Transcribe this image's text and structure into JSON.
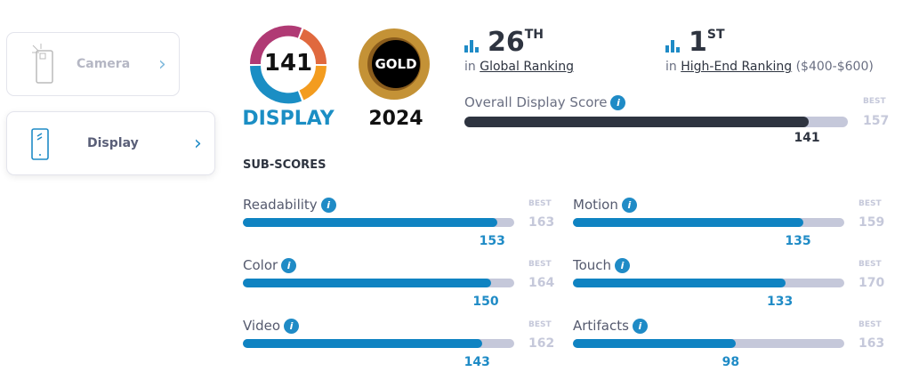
{
  "sidebar": {
    "items": [
      {
        "label": "Camera",
        "icon": "camera-phone-icon"
      },
      {
        "label": "Display",
        "icon": "display-phone-icon",
        "active": true
      }
    ]
  },
  "badge": {
    "score": "141",
    "label": "DISPLAY",
    "award": "GOLD",
    "year": "2024"
  },
  "rankings": [
    {
      "rank": "26",
      "suffix": "TH",
      "prefix": "in",
      "link": "Global Ranking",
      "extra": ""
    },
    {
      "rank": "1",
      "suffix": "ST",
      "prefix": "in",
      "link": "High-End Ranking",
      "extra": "($400-$600)"
    }
  ],
  "overall": {
    "label": "Overall Display Score",
    "best_label": "BEST",
    "best": 157,
    "value": 141
  },
  "subscores_title": "SUB-SCORES",
  "subscores": [
    {
      "label": "Readability",
      "value": 153,
      "best": 163
    },
    {
      "label": "Motion",
      "value": 135,
      "best": 159
    },
    {
      "label": "Color",
      "value": 150,
      "best": 164
    },
    {
      "label": "Touch",
      "value": 133,
      "best": 170
    },
    {
      "label": "Video",
      "value": 143,
      "best": 162
    },
    {
      "label": "Artifacts",
      "value": 98,
      "best": 163
    }
  ],
  "best_label": "BEST",
  "colors": {
    "accent": "#1f8bc6",
    "dark": "#2e3440",
    "track": "#c5c8da"
  }
}
